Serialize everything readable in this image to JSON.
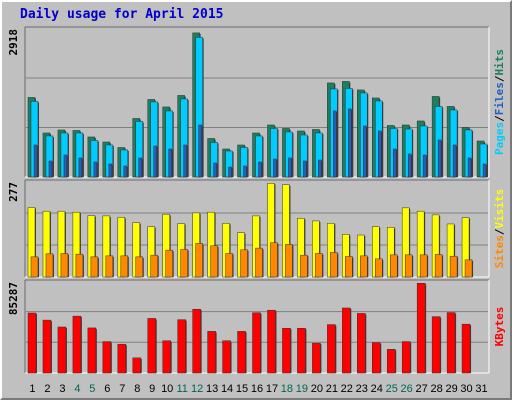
{
  "title": "Daily usage for April 2015",
  "colors": {
    "frame_bg": "#c0c0c0",
    "plot_bg": "#c0c0c0",
    "grid": "#808080",
    "hits": "#1c7f60",
    "files": "#00ccff",
    "pages": "#2060c0",
    "visits": "#ffff00",
    "sites": "#ff8800",
    "kbytes": "#ff0000",
    "weekend_day": "#006655",
    "weekday_day": "#000000",
    "title": "#0000cc"
  },
  "chart_data": [
    {
      "type": "bar",
      "panel": "hits-files-pages",
      "label_parts": [
        {
          "text": "Pages",
          "color": "#00ccff"
        },
        {
          "text": "/",
          "color": "#000000"
        },
        {
          "text": "Files",
          "color": "#2060c0"
        },
        {
          "text": "/",
          "color": "#000000"
        },
        {
          "text": "Hits",
          "color": "#1c7f60"
        }
      ],
      "ymax_label": "2918",
      "ylim": [
        0,
        2918
      ],
      "categories": [
        "1",
        "2",
        "3",
        "4",
        "5",
        "6",
        "7",
        "8",
        "9",
        "10",
        "11",
        "12",
        "13",
        "14",
        "15",
        "16",
        "17",
        "18",
        "19",
        "20",
        "21",
        "22",
        "23",
        "24",
        "25",
        "26",
        "27",
        "28",
        "29",
        "30",
        "31"
      ],
      "series": [
        {
          "name": "Hits",
          "values": [
            1590,
            880,
            940,
            930,
            800,
            700,
            590,
            1170,
            1550,
            1400,
            1630,
            2880,
            770,
            560,
            640,
            880,
            1040,
            970,
            920,
            950,
            1880,
            1910,
            1740,
            1580,
            1030,
            1040,
            1120,
            1610,
            1410,
            990,
            720
          ]
        },
        {
          "name": "Files",
          "values": [
            1510,
            820,
            880,
            880,
            730,
            640,
            540,
            1110,
            1500,
            1320,
            1560,
            2790,
            690,
            520,
            590,
            820,
            970,
            900,
            840,
            880,
            1760,
            1770,
            1680,
            1520,
            970,
            960,
            1020,
            1410,
            1340,
            940,
            660
          ]
        },
        {
          "name": "Pages",
          "values": [
            640,
            320,
            440,
            380,
            300,
            260,
            220,
            380,
            620,
            560,
            640,
            1040,
            280,
            200,
            220,
            300,
            360,
            380,
            320,
            340,
            1320,
            1360,
            1020,
            920,
            560,
            460,
            440,
            740,
            640,
            380,
            260
          ]
        }
      ]
    },
    {
      "type": "bar",
      "panel": "visits-sites",
      "label_parts": [
        {
          "text": "Sites",
          "color": "#ff8800"
        },
        {
          "text": "/",
          "color": "#000000"
        },
        {
          "text": "Visits",
          "color": "#ffff00"
        }
      ],
      "ymax_label": "277",
      "ylim": [
        0,
        277
      ],
      "categories": [
        "1",
        "2",
        "3",
        "4",
        "5",
        "6",
        "7",
        "8",
        "9",
        "10",
        "11",
        "12",
        "13",
        "14",
        "15",
        "16",
        "17",
        "18",
        "19",
        "20",
        "21",
        "22",
        "23",
        "24",
        "25",
        "26",
        "27",
        "28",
        "29",
        "30",
        "31"
      ],
      "series": [
        {
          "name": "Visits",
          "values": [
            207,
            196,
            196,
            193,
            183,
            182,
            178,
            162,
            150,
            187,
            159,
            191,
            193,
            160,
            132,
            182,
            279,
            275,
            175,
            167,
            160,
            127,
            125,
            150,
            148,
            206,
            196,
            185,
            158,
            177,
            0
          ]
        },
        {
          "name": "Sites",
          "values": [
            60,
            69,
            70,
            68,
            60,
            63,
            63,
            60,
            65,
            80,
            82,
            100,
            93,
            70,
            81,
            86,
            102,
            97,
            65,
            70,
            73,
            61,
            63,
            54,
            66,
            66,
            66,
            67,
            62,
            51,
            0
          ]
        }
      ]
    },
    {
      "type": "bar",
      "panel": "kbytes",
      "label_parts": [
        {
          "text": "KBytes",
          "color": "#ff0000"
        }
      ],
      "ymax_label": "85287",
      "ylim": [
        0,
        85287
      ],
      "categories": [
        "1",
        "2",
        "3",
        "4",
        "5",
        "6",
        "7",
        "8",
        "9",
        "10",
        "11",
        "12",
        "13",
        "14",
        "15",
        "16",
        "17",
        "18",
        "19",
        "20",
        "21",
        "22",
        "23",
        "24",
        "25",
        "26",
        "27",
        "28",
        "29",
        "30",
        "31"
      ],
      "series": [
        {
          "name": "KBytes",
          "values": [
            57500,
            50700,
            44100,
            54500,
            43200,
            30100,
            27600,
            14500,
            52300,
            30900,
            51100,
            61100,
            39900,
            30900,
            39900,
            57700,
            60200,
            42900,
            42900,
            28600,
            46400,
            62300,
            57100,
            29100,
            22700,
            30100,
            86000,
            54000,
            57900,
            46800,
            0
          ]
        }
      ]
    }
  ],
  "x_axis": {
    "labels": [
      "1",
      "2",
      "3",
      "4",
      "5",
      "6",
      "7",
      "8",
      "9",
      "10",
      "11",
      "12",
      "13",
      "14",
      "15",
      "16",
      "17",
      "18",
      "19",
      "20",
      "21",
      "22",
      "23",
      "24",
      "25",
      "26",
      "27",
      "28",
      "29",
      "30",
      "31"
    ],
    "weekend_labels": [
      "4",
      "5",
      "11",
      "12",
      "18",
      "19",
      "25",
      "26"
    ]
  }
}
